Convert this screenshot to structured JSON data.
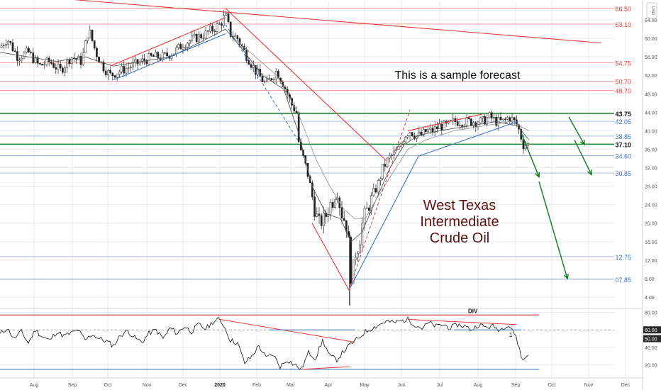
{
  "chart_data": [
    {
      "type": "candlestick",
      "ticker_currency": "USD",
      "annotations": {
        "sample_note": "This is a sample forecast",
        "title_lines": [
          "West Texas",
          "Intermediate",
          "Crude Oil"
        ]
      },
      "x_ticks": [
        "Aug",
        "Sep",
        "Oct",
        "Nov",
        "Dec",
        "2020",
        "Feb",
        "Mar",
        "Apr",
        "May",
        "Jun",
        "Jul",
        "Aug",
        "Sep",
        "Oct",
        "Nov",
        "Dec"
      ],
      "y_ticks": [
        4.0,
        8.0,
        12.0,
        16.0,
        20.0,
        24.0,
        28.0,
        32.0,
        36.0,
        40.0,
        44.0,
        48.0,
        52.0,
        56.0,
        60.0,
        64.0
      ],
      "ylim": [
        2.0,
        68.0
      ],
      "levels": [
        {
          "value": 66.5,
          "label": "66.50",
          "color": "#e53935",
          "role": "resistance"
        },
        {
          "value": 63.1,
          "label": "63.10",
          "color": "#e53935",
          "role": "resistance"
        },
        {
          "value": 54.75,
          "label": "54.75",
          "color": "#e53935",
          "role": "resistance"
        },
        {
          "value": 50.7,
          "label": "50.70",
          "color": "#e53935",
          "role": "resistance"
        },
        {
          "value": 48.7,
          "label": "48.70",
          "color": "#e53935",
          "role": "resistance"
        },
        {
          "value": 43.75,
          "label": "43.75",
          "color": "#1b7f2a",
          "role": "key"
        },
        {
          "value": 42.05,
          "label": "42.05",
          "color": "#3b72c4",
          "role": "support"
        },
        {
          "value": 38.85,
          "label": "38.85",
          "color": "#3b72c4",
          "role": "support"
        },
        {
          "value": 37.1,
          "label": "37.10",
          "color": "#1b7f2a",
          "role": "key"
        },
        {
          "value": 34.6,
          "label": "34.60",
          "color": "#3b72c4",
          "role": "support"
        },
        {
          "value": 30.85,
          "label": "30.85",
          "color": "#3b72c4",
          "role": "support"
        },
        {
          "value": 12.75,
          "label": "12.75",
          "color": "#3b72c4",
          "role": "support"
        },
        {
          "value": 7.85,
          "label": "07.85",
          "color": "#3b72c4",
          "role": "support"
        }
      ],
      "price_path": [
        [
          0,
          58
        ],
        [
          10,
          60
        ],
        [
          25,
          56
        ],
        [
          40,
          57
        ],
        [
          55,
          54
        ],
        [
          70,
          55
        ],
        [
          85,
          53
        ],
        [
          100,
          56
        ],
        [
          115,
          55
        ],
        [
          125,
          62
        ],
        [
          135,
          57
        ],
        [
          145,
          54
        ],
        [
          155,
          52
        ],
        [
          170,
          53
        ],
        [
          185,
          54
        ],
        [
          200,
          55
        ],
        [
          215,
          56
        ],
        [
          230,
          56
        ],
        [
          245,
          57
        ],
        [
          260,
          59
        ],
        [
          275,
          60
        ],
        [
          290,
          61
        ],
        [
          300,
          62
        ],
        [
          310,
          63
        ],
        [
          318,
          65
        ],
        [
          325,
          61
        ],
        [
          335,
          60
        ],
        [
          345,
          57
        ],
        [
          360,
          53
        ],
        [
          375,
          50
        ],
        [
          390,
          53
        ],
        [
          400,
          50
        ],
        [
          410,
          46
        ],
        [
          418,
          44
        ],
        [
          422,
          36
        ],
        [
          428,
          34
        ],
        [
          435,
          30
        ],
        [
          440,
          26
        ],
        [
          445,
          22
        ],
        [
          450,
          20
        ],
        [
          458,
          21
        ],
        [
          465,
          24
        ],
        [
          470,
          25
        ],
        [
          475,
          27
        ],
        [
          482,
          22
        ],
        [
          488,
          20
        ],
        [
          493,
          14
        ],
        [
          496,
          5
        ],
        [
          499,
          13
        ],
        [
          503,
          14
        ],
        [
          508,
          17
        ],
        [
          512,
          21
        ],
        [
          518,
          23
        ],
        [
          525,
          26
        ],
        [
          532,
          28
        ],
        [
          540,
          32
        ],
        [
          548,
          34
        ],
        [
          555,
          35
        ],
        [
          562,
          36
        ],
        [
          570,
          39
        ],
        [
          578,
          40
        ],
        [
          586,
          39
        ],
        [
          594,
          39
        ],
        [
          602,
          40
        ],
        [
          610,
          40
        ],
        [
          620,
          41
        ],
        [
          630,
          41
        ],
        [
          640,
          42
        ],
        [
          650,
          42
        ],
        [
          660,
          42
        ],
        [
          670,
          42
        ],
        [
          680,
          42
        ],
        [
          690,
          43
        ],
        [
          700,
          42
        ],
        [
          710,
          42
        ],
        [
          718,
          43
        ],
        [
          725,
          42
        ],
        [
          730,
          41
        ],
        [
          734,
          39
        ],
        [
          738,
          37
        ],
        [
          742,
          37
        ],
        [
          746,
          37
        ]
      ],
      "ma_fast": [
        [
          0,
          57
        ],
        [
          40,
          56
        ],
        [
          80,
          55
        ],
        [
          120,
          56
        ],
        [
          160,
          54
        ],
        [
          200,
          55
        ],
        [
          240,
          56
        ],
        [
          280,
          59
        ],
        [
          318,
          62
        ],
        [
          340,
          58
        ],
        [
          370,
          52
        ],
        [
          400,
          49
        ],
        [
          420,
          40
        ],
        [
          440,
          28
        ],
        [
          460,
          22
        ],
        [
          480,
          21
        ],
        [
          495,
          16
        ],
        [
          510,
          18
        ],
        [
          530,
          25
        ],
        [
          550,
          32
        ],
        [
          570,
          37
        ],
        [
          590,
          39
        ],
        [
          620,
          40
        ],
        [
          660,
          41
        ],
        [
          700,
          42
        ],
        [
          730,
          41
        ],
        [
          746,
          38
        ]
      ],
      "ma_slow": [
        [
          330,
          60
        ],
        [
          360,
          56
        ],
        [
          390,
          52
        ],
        [
          420,
          44
        ],
        [
          445,
          34
        ],
        [
          465,
          28
        ],
        [
          485,
          23
        ],
        [
          500,
          21
        ],
        [
          515,
          21
        ],
        [
          530,
          25
        ],
        [
          550,
          30
        ],
        [
          575,
          36
        ],
        [
          600,
          38
        ],
        [
          640,
          40
        ],
        [
          680,
          41
        ],
        [
          720,
          42
        ],
        [
          746,
          40
        ]
      ],
      "trendlines": [
        {
          "color": "#e53935",
          "from": [
            95,
            68.5
          ],
          "to": [
            848,
            59
          ]
        },
        {
          "color": "#e53935",
          "from": [
            318,
            66.5
          ],
          "to": [
            545,
            33.5
          ]
        },
        {
          "color": "#e53935",
          "from": [
            155,
            54
          ],
          "to": [
            318,
            64.5
          ]
        },
        {
          "color": "#3b72c4",
          "from": [
            160,
            51
          ],
          "to": [
            318,
            61
          ]
        },
        {
          "color": "#3b72c4",
          "from": [
            492,
            5.5
          ],
          "to": [
            590,
            34.5
          ]
        },
        {
          "color": "#3b72c4",
          "from": [
            590,
            34.5
          ],
          "to": [
            730,
            42
          ]
        },
        {
          "color": "#e53935",
          "from": [
            575,
            40
          ],
          "to": [
            680,
            43.6
          ]
        },
        {
          "color": "#e53935",
          "from": [
            440,
            20
          ],
          "to": [
            492,
            5.5
          ]
        }
      ],
      "dashed_lines": [
        {
          "color": "#e53935",
          "from": [
            492,
            5.5
          ],
          "to": [
            578,
            44.5
          ]
        },
        {
          "color": "#3b72c4",
          "from": [
            318,
            63
          ],
          "to": [
            420,
            38
          ]
        }
      ],
      "forecast_arrows": [
        {
          "color": "#1b7f2a",
          "points": [
            [
              735,
              39.5
            ],
            [
              760,
              30
            ]
          ]
        },
        {
          "color": "#1b7f2a",
          "points": [
            [
              760,
              29
            ],
            [
              800,
              8
            ]
          ]
        },
        {
          "color": "#1b7f2a",
          "points": [
            [
              802,
              43
            ],
            [
              824,
              37
            ]
          ]
        },
        {
          "color": "#1b7f2a",
          "points": [
            [
              810,
              38
            ],
            [
              834,
              30.5
            ]
          ]
        }
      ]
    },
    {
      "type": "line",
      "indicator": "RSI",
      "divergence_label": "DIV",
      "marker_label": "1",
      "y_ticks": [
        20.0,
        40.0,
        60.0,
        80.0
      ],
      "value_badges": [
        {
          "value": 50.0,
          "label": "50.00"
        },
        {
          "value": 60.0,
          "label": "60.00"
        }
      ],
      "ylim": [
        10,
        82
      ],
      "levels": [
        {
          "value": 77,
          "color": "#e53935"
        },
        {
          "value": 60,
          "color": "#777777"
        },
        {
          "value": 15,
          "color": "#3b72c4"
        }
      ],
      "rsi_path": [
        [
          0,
          55
        ],
        [
          10,
          62
        ],
        [
          20,
          50
        ],
        [
          30,
          58
        ],
        [
          40,
          45
        ],
        [
          50,
          60
        ],
        [
          60,
          52
        ],
        [
          70,
          48
        ],
        [
          80,
          58
        ],
        [
          90,
          53
        ],
        [
          100,
          56
        ],
        [
          110,
          60
        ],
        [
          120,
          48
        ],
        [
          130,
          55
        ],
        [
          140,
          50
        ],
        [
          150,
          47
        ],
        [
          160,
          42
        ],
        [
          170,
          54
        ],
        [
          180,
          59
        ],
        [
          190,
          51
        ],
        [
          200,
          46
        ],
        [
          210,
          56
        ],
        [
          220,
          60
        ],
        [
          230,
          50
        ],
        [
          240,
          62
        ],
        [
          250,
          56
        ],
        [
          260,
          64
        ],
        [
          270,
          58
        ],
        [
          280,
          66
        ],
        [
          290,
          61
        ],
        [
          300,
          69
        ],
        [
          308,
          72
        ],
        [
          315,
          66
        ],
        [
          325,
          48
        ],
        [
          335,
          45
        ],
        [
          345,
          22
        ],
        [
          355,
          30
        ],
        [
          365,
          42
        ],
        [
          375,
          28
        ],
        [
          385,
          32
        ],
        [
          395,
          18
        ],
        [
          405,
          26
        ],
        [
          415,
          20
        ],
        [
          425,
          15
        ],
        [
          435,
          34
        ],
        [
          445,
          28
        ],
        [
          455,
          48
        ],
        [
          465,
          30
        ],
        [
          475,
          26
        ],
        [
          485,
          36
        ],
        [
          495,
          44
        ],
        [
          505,
          50
        ],
        [
          515,
          58
        ],
        [
          525,
          62
        ],
        [
          535,
          66
        ],
        [
          545,
          70
        ],
        [
          555,
          68
        ],
        [
          565,
          70
        ],
        [
          575,
          72
        ],
        [
          585,
          66
        ],
        [
          595,
          62
        ],
        [
          605,
          68
        ],
        [
          615,
          64
        ],
        [
          625,
          66
        ],
        [
          635,
          62
        ],
        [
          645,
          66
        ],
        [
          655,
          64
        ],
        [
          665,
          60
        ],
        [
          675,
          66
        ],
        [
          685,
          63
        ],
        [
          695,
          64
        ],
        [
          705,
          60
        ],
        [
          715,
          66
        ],
        [
          722,
          62
        ],
        [
          728,
          50
        ],
        [
          732,
          40
        ],
        [
          737,
          24
        ],
        [
          742,
          30
        ],
        [
          746,
          32
        ]
      ],
      "trendlines": [
        {
          "color": "#e53935",
          "from": [
            310,
            72
          ],
          "to": [
            500,
            46
          ]
        },
        {
          "color": "#e53935",
          "from": [
            575,
            72
          ],
          "to": [
            728,
            66
          ]
        },
        {
          "color": "#e53935",
          "from": [
            425,
            15
          ],
          "to": [
            493,
            18
          ]
        },
        {
          "color": "#3b72c4",
          "from": [
            380,
            60
          ],
          "to": [
            500,
            60
          ]
        },
        {
          "color": "#3b72c4",
          "from": [
            640,
            60
          ],
          "to": [
            735,
            60
          ]
        }
      ]
    }
  ],
  "colors": {
    "up": "#089981",
    "down": "#f23645",
    "candle_wick": "#222222",
    "grid": "#e6e9f0"
  }
}
